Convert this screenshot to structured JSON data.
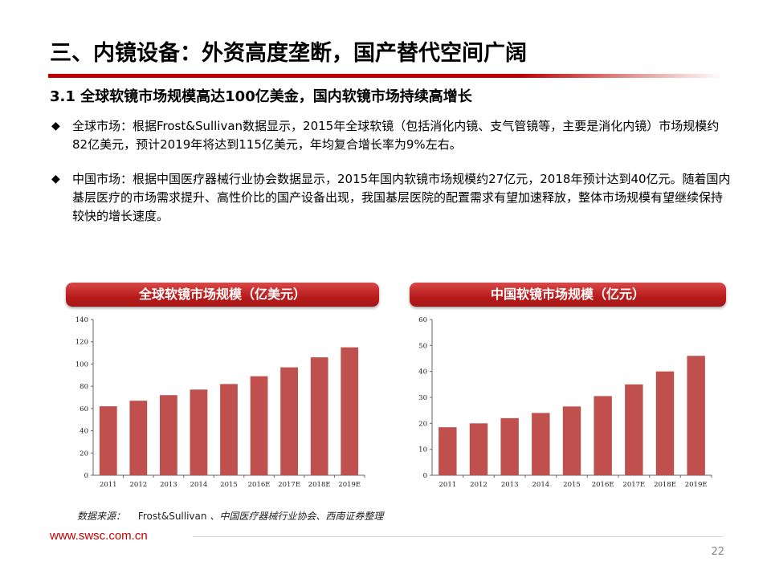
{
  "header": {
    "title": "三、内镜设备：外资高度垄断，国产替代空间广阔",
    "subtitle": "3.1 全球软镜市场规模高达100亿美金，国内软镜市场持续高增长"
  },
  "bullets": [
    {
      "marker": "◆",
      "text": "全球市场：根据Frost&Sullivan数据显示，2015年全球软镜（包括消化内镜、支气管镜等，主要是消化内镜）市场规模约82亿美元，预计2019年将达到115亿美元，年均复合增长率为9%左右。"
    },
    {
      "marker": "◆",
      "text": "中国市场：根据中国医疗器械行业协会数据显示，2015年国内软镜市场规模约27亿元，2018年预计达到40亿元。随着国内基层医疗的市场需求提升、高性价比的国产设备出现，我国基层医院的配置需求有望加速释放，整体市场规模有望继续保持较快的增长速度。"
    }
  ],
  "colors": {
    "accent": "#c00000",
    "bar": "#c0504d"
  },
  "chart_data": [
    {
      "type": "bar",
      "title": "全球软镜市场规模（亿美元）",
      "categories": [
        "2011",
        "2012",
        "2013",
        "2014",
        "2015",
        "2016E",
        "2017E",
        "2018E",
        "2019E"
      ],
      "values": [
        62,
        67,
        72,
        77,
        82,
        89,
        97,
        106,
        115
      ],
      "ylim": [
        0,
        140
      ],
      "yticks": [
        0,
        20,
        40,
        60,
        80,
        100,
        120,
        140
      ],
      "grid": false
    },
    {
      "type": "bar",
      "title": "中国软镜市场规模（亿元）",
      "categories": [
        "2011",
        "2012",
        "2013",
        "2014",
        "2015",
        "2016E",
        "2017E",
        "2018E",
        "2019E"
      ],
      "values": [
        18.5,
        20,
        22,
        24,
        26.5,
        30.5,
        35,
        40,
        46
      ],
      "ylim": [
        0,
        60
      ],
      "yticks": [
        0,
        10,
        20,
        30,
        40,
        50,
        60
      ],
      "grid": false
    }
  ],
  "source": {
    "label": "数据来源：",
    "main": "Frost&Sullivan",
    "rest": "、中国医疗器械行业协会、西南证券整理"
  },
  "footer": {
    "url": "www.swsc.com.cn",
    "page": "22"
  }
}
